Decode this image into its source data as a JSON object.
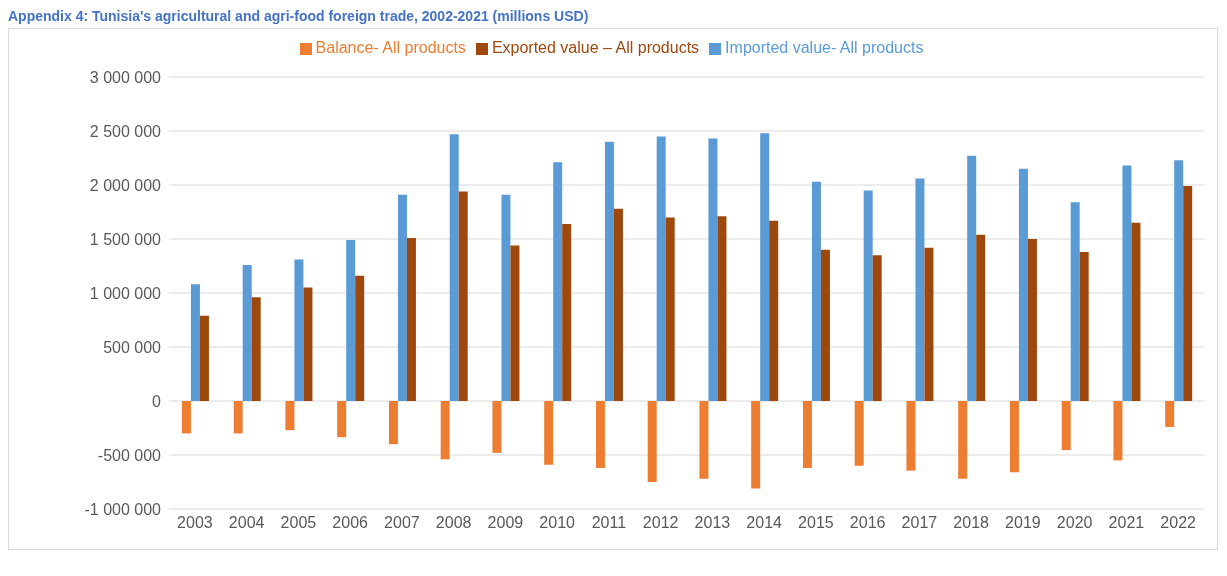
{
  "chart_data": {
    "type": "bar",
    "title": "Appendix 4: Tunisia's agricultural and agri-food foreign trade, 2002-2021 (millions USD)",
    "categories": [
      "2003",
      "2004",
      "2005",
      "2006",
      "2007",
      "2008",
      "2009",
      "2010",
      "2011",
      "2012",
      "2013",
      "2014",
      "2015",
      "2016",
      "2017",
      "2018",
      "2019",
      "2020",
      "2021",
      "2022"
    ],
    "series": [
      {
        "name": "Balance-   All products",
        "color": "#ed7d31",
        "values": [
          -300000,
          -300000,
          -270000,
          -335000,
          -400000,
          -540000,
          -480000,
          -590000,
          -620000,
          -750000,
          -720000,
          -810000,
          -620000,
          -600000,
          -645000,
          -720000,
          -660000,
          -455000,
          -550000,
          -240000
        ]
      },
      {
        "name": "Imported  value- All products",
        "color": "#5b9bd5",
        "values": [
          1080000,
          1260000,
          1310000,
          1490000,
          1910000,
          2470000,
          1910000,
          2210000,
          2400000,
          2450000,
          2430000,
          2480000,
          2030000,
          1950000,
          2060000,
          2270000,
          2150000,
          1840000,
          2180000,
          2230000
        ]
      },
      {
        "name": "Exported value – All products",
        "color": "#9e480e",
        "values": [
          790000,
          960000,
          1050000,
          1160000,
          1510000,
          1940000,
          1440000,
          1640000,
          1780000,
          1700000,
          1710000,
          1670000,
          1400000,
          1350000,
          1420000,
          1540000,
          1500000,
          1380000,
          1650000,
          1990000
        ]
      }
    ],
    "ylim": [
      -1000000,
      3000000
    ],
    "yticks": [
      {
        "value": -1000000,
        "label": "-1 000 000"
      },
      {
        "value": -500000,
        "label": "-500 000"
      },
      0,
      {
        "value": 500000,
        "label": "500 000"
      },
      {
        "value": 1000000,
        "label": "1 000 000"
      },
      {
        "value": 1500000,
        "label": "1 500 000"
      },
      {
        "value": 2000000,
        "label": "2 000 000"
      },
      {
        "value": 2500000,
        "label": "2 500 000"
      },
      {
        "value": 3000000,
        "label": "3 000 000"
      }
    ],
    "grid": "y",
    "legend": "top"
  }
}
